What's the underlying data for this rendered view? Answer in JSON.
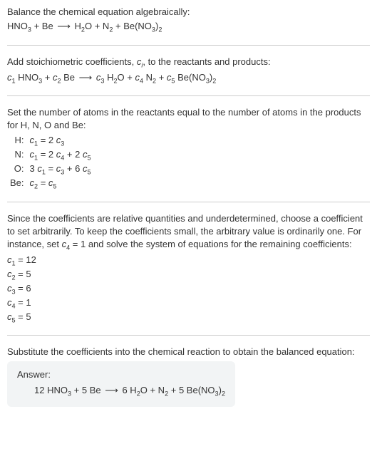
{
  "section1": {
    "intro": "Balance the chemical equation algebraically:",
    "eq_lhs1": "HNO",
    "eq_lhs1_sub": "3",
    "eq_plus1": " + Be ",
    "eq_arrow": "⟶",
    "eq_rhs1": " H",
    "eq_rhs1_sub": "2",
    "eq_rhs2": "O + N",
    "eq_rhs2_sub": "2",
    "eq_rhs3": " + Be(NO",
    "eq_rhs3_sub": "3",
    "eq_rhs4": ")",
    "eq_rhs4_sub": "2"
  },
  "section2": {
    "intro_a": "Add stoichiometric coefficients, ",
    "intro_ci": "c",
    "intro_ci_sub": "i",
    "intro_b": ", to the reactants and products:",
    "c1": "c",
    "c1_sub": "1",
    "t1": " HNO",
    "t1_sub": "3",
    "plus1": " + ",
    "c2": "c",
    "c2_sub": "2",
    "t2": " Be ",
    "arrow": "⟶",
    "c3": " c",
    "c3_sub": "3",
    "t3": " H",
    "t3_sub": "2",
    "t3b": "O + ",
    "c4": "c",
    "c4_sub": "4",
    "t4": " N",
    "t4_sub": "2",
    "plus2": " + ",
    "c5": "c",
    "c5_sub": "5",
    "t5": " Be(NO",
    "t5_sub": "3",
    "t5b": ")",
    "t5b_sub": "2"
  },
  "section3": {
    "intro": "Set the number of atoms in the reactants equal to the number of atoms in the products for H, N, O and Be:",
    "rows": [
      {
        "label": "H:",
        "lhs_c": "c",
        "lhs_sub": "1",
        "eq": " = 2 ",
        "rhs_c": "c",
        "rhs_sub": "3",
        "rest": ""
      },
      {
        "label": "N:",
        "lhs_c": "c",
        "lhs_sub": "1",
        "eq": " = 2 ",
        "rhs_c": "c",
        "rhs_sub": "4",
        "rest_a": " + 2 ",
        "rest_c": "c",
        "rest_sub": "5"
      },
      {
        "label": "O:",
        "lhs_pre": "3 ",
        "lhs_c": "c",
        "lhs_sub": "1",
        "eq": " = ",
        "rhs_c": "c",
        "rhs_sub": "3",
        "rest_a": " + 6 ",
        "rest_c": "c",
        "rest_sub": "5"
      },
      {
        "label": "Be:",
        "lhs_c": "c",
        "lhs_sub": "2",
        "eq": " = ",
        "rhs_c": "c",
        "rhs_sub": "5",
        "rest": ""
      }
    ]
  },
  "section4": {
    "intro_a": "Since the coefficients are relative quantities and underdetermined, choose a coefficient to set arbitrarily. To keep the coefficients small, the arbitrary value is ordinarily one. For instance, set ",
    "c4": "c",
    "c4_sub": "4",
    "intro_b": " = 1 and solve the system of equations for the remaining coefficients:",
    "coefs": [
      {
        "c": "c",
        "sub": "1",
        "val": " = 12"
      },
      {
        "c": "c",
        "sub": "2",
        "val": " = 5"
      },
      {
        "c": "c",
        "sub": "3",
        "val": " = 6"
      },
      {
        "c": "c",
        "sub": "4",
        "val": " = 1"
      },
      {
        "c": "c",
        "sub": "5",
        "val": " = 5"
      }
    ]
  },
  "section5": {
    "intro": "Substitute the coefficients into the chemical reaction to obtain the balanced equation:",
    "answer_label": "Answer:",
    "eq_a": "12 HNO",
    "eq_a_sub": "3",
    "eq_b": " + 5 Be ",
    "arrow": "⟶",
    "eq_c": " 6 H",
    "eq_c_sub": "2",
    "eq_d": "O + N",
    "eq_d_sub": "2",
    "eq_e": " + 5 Be(NO",
    "eq_e_sub": "3",
    "eq_f": ")",
    "eq_f_sub": "2"
  }
}
